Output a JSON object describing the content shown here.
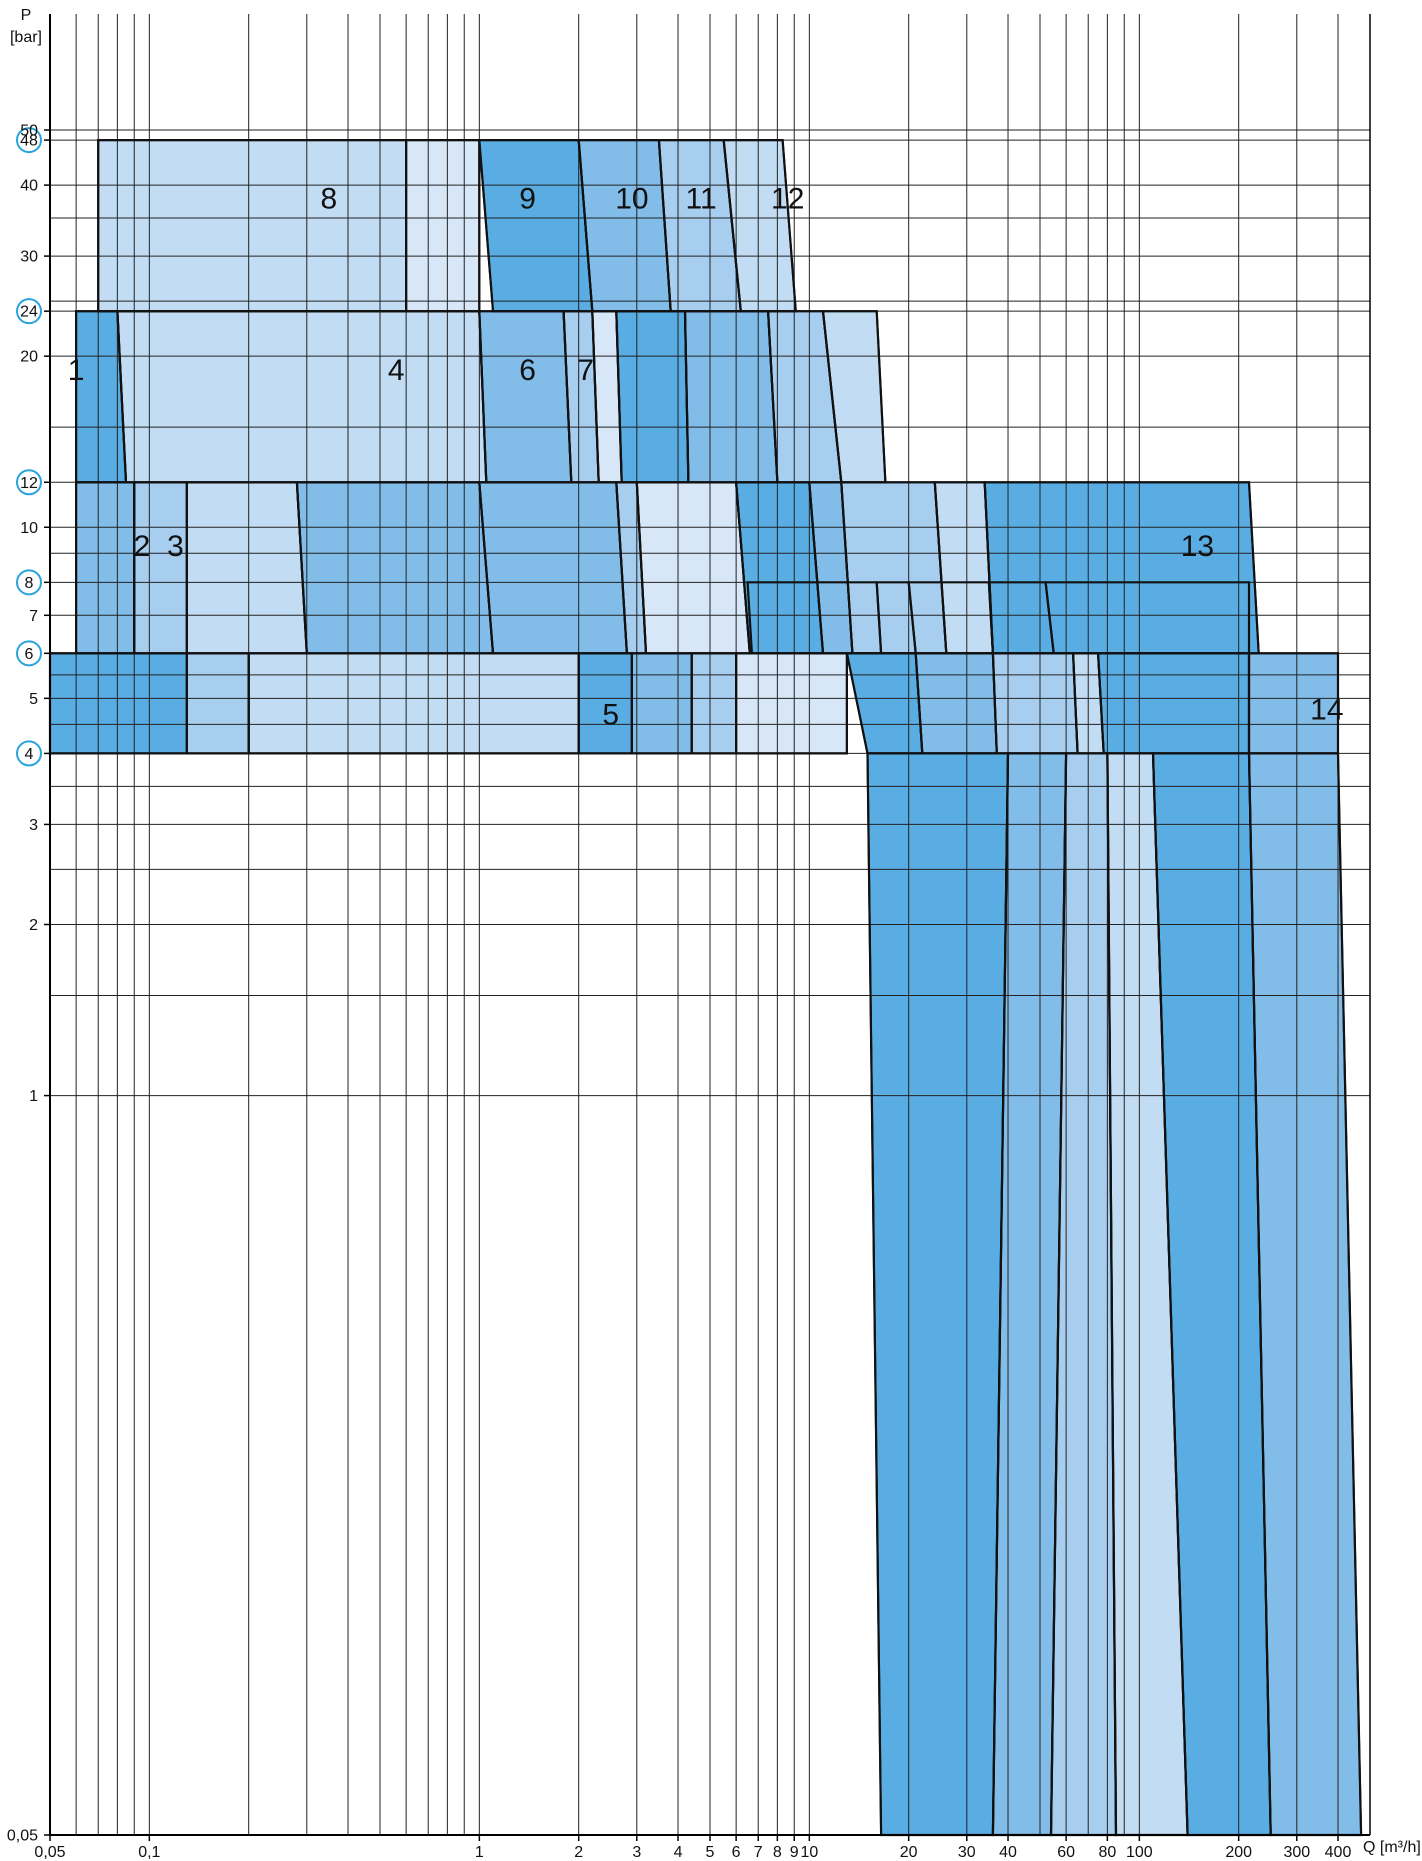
{
  "chart_data": {
    "type": "area",
    "title": "",
    "xlabel": "Q [m³/h]",
    "ylabel_top": "P",
    "ylabel_unit": "[bar]",
    "x_scale": "log",
    "y_scale": "log",
    "xlim": [
      0.05,
      500
    ],
    "ylim": [
      0.05,
      80
    ],
    "grid": true,
    "colors": {
      "dark": "#59ade2",
      "mid": "#82bce8",
      "light": "#a7cdef",
      "lighter": "#c2dcf3",
      "lightest": "#d7e7f7",
      "outline": "#111111",
      "circle": "#28a4dc",
      "grid": "#222222"
    },
    "x_ticks": [
      {
        "v": 0.05,
        "label": "0,05"
      },
      {
        "v": 0.1,
        "label": "0,1"
      },
      {
        "v": 1,
        "label": "1"
      },
      {
        "v": 2,
        "label": "2"
      },
      {
        "v": 3,
        "label": "3"
      },
      {
        "v": 4,
        "label": "4"
      },
      {
        "v": 5,
        "label": "5"
      },
      {
        "v": 6,
        "label": "6"
      },
      {
        "v": 7,
        "label": "7"
      },
      {
        "v": 8,
        "label": "8"
      },
      {
        "v": 9,
        "label": "9"
      },
      {
        "v": 10,
        "label": "10"
      },
      {
        "v": 20,
        "label": "20"
      },
      {
        "v": 30,
        "label": "30"
      },
      {
        "v": 40,
        "label": "40"
      },
      {
        "v": 60,
        "label": "60"
      },
      {
        "v": 80,
        "label": "80"
      },
      {
        "v": 100,
        "label": "100"
      },
      {
        "v": 200,
        "label": "200"
      },
      {
        "v": 300,
        "label": "300"
      },
      {
        "v": 400,
        "label": "400"
      }
    ],
    "y_ticks": [
      {
        "v": 0.05,
        "label": "0,05",
        "circled": false
      },
      {
        "v": 1,
        "label": "1",
        "circled": false
      },
      {
        "v": 2,
        "label": "2",
        "circled": false
      },
      {
        "v": 3,
        "label": "3",
        "circled": false
      },
      {
        "v": 4,
        "label": "4",
        "circled": true
      },
      {
        "v": 5,
        "label": "5",
        "circled": false
      },
      {
        "v": 6,
        "label": "6",
        "circled": true
      },
      {
        "v": 7,
        "label": "7",
        "circled": false
      },
      {
        "v": 8,
        "label": "8",
        "circled": true
      },
      {
        "v": 10,
        "label": "10",
        "circled": false
      },
      {
        "v": 12,
        "label": "12",
        "circled": true
      },
      {
        "v": 20,
        "label": "20",
        "circled": false
      },
      {
        "v": 24,
        "label": "24",
        "circled": true
      },
      {
        "v": 30,
        "label": "30",
        "circled": false
      },
      {
        "v": 40,
        "label": "40",
        "circled": false
      },
      {
        "v": 48,
        "label": "48",
        "circled": true
      },
      {
        "v": 50,
        "label": "50",
        "circled": false
      }
    ],
    "x_grid": [
      0.05,
      0.06,
      0.07,
      0.08,
      0.09,
      0.1,
      0.2,
      0.3,
      0.4,
      0.5,
      0.6,
      0.7,
      0.8,
      0.9,
      1,
      2,
      3,
      4,
      5,
      6,
      7,
      8,
      9,
      10,
      20,
      30,
      40,
      50,
      60,
      70,
      80,
      90,
      100,
      200,
      300,
      400,
      500
    ],
    "y_grid": [
      1,
      1.5,
      2,
      2.5,
      3,
      3.5,
      4,
      4.5,
      5,
      5.5,
      6,
      7,
      8,
      9,
      10,
      12,
      15,
      20,
      24,
      25,
      30,
      35,
      40,
      48,
      50
    ],
    "bands": [
      {
        "p_lo": 0.05,
        "p_hi": 4,
        "cells": [
          {
            "x0": 15,
            "x1": 40,
            "xb0": 16.5,
            "xb1": 36,
            "color": "dark"
          },
          {
            "x0": 40,
            "x1": 60,
            "xb0": 36,
            "xb1": 54,
            "color": "mid"
          },
          {
            "x0": 60,
            "x1": 80,
            "xb0": 54,
            "xb1": 85,
            "color": "light"
          },
          {
            "x0": 80,
            "x1": 110,
            "xb0": 85,
            "xb1": 140,
            "color": "lighter"
          },
          {
            "x0": 110,
            "x1": 215,
            "xb0": 140,
            "xb1": 250,
            "color": "dark"
          },
          {
            "x0": 215,
            "x1": 400,
            "xb0": 250,
            "xb1": 470,
            "color": "mid"
          }
        ]
      },
      {
        "p_lo": 4,
        "p_hi": 6,
        "cells": [
          {
            "x0": 0.05,
            "x1": 0.13,
            "xb0": 0.05,
            "xb1": 0.13,
            "color": "dark"
          },
          {
            "x0": 0.13,
            "x1": 0.2,
            "xb0": 0.13,
            "xb1": 0.2,
            "color": "light"
          },
          {
            "x0": 0.2,
            "x1": 2,
            "xb0": 0.2,
            "xb1": 2,
            "color": "lighter"
          },
          {
            "x0": 2,
            "x1": 2.9,
            "xb0": 2,
            "xb1": 2.9,
            "color": "dark"
          },
          {
            "x0": 2.9,
            "x1": 4.4,
            "xb0": 2.9,
            "xb1": 4.4,
            "color": "mid"
          },
          {
            "x0": 4.4,
            "x1": 6,
            "xb0": 4.4,
            "xb1": 6,
            "color": "light"
          },
          {
            "x0": 6,
            "x1": 13,
            "xb0": 6,
            "xb1": 13,
            "color": "lightest"
          },
          {
            "x0": 13,
            "x1": 21,
            "xb0": 15,
            "xb1": 22,
            "color": "dark"
          },
          {
            "x0": 21,
            "x1": 36,
            "xb0": 22,
            "xb1": 37,
            "color": "mid"
          },
          {
            "x0": 36,
            "x1": 63,
            "xb0": 37,
            "xb1": 65,
            "color": "light"
          },
          {
            "x0": 63,
            "x1": 75,
            "xb0": 65,
            "xb1": 78,
            "color": "lighter"
          },
          {
            "x0": 75,
            "x1": 215,
            "xb0": 78,
            "xb1": 215,
            "color": "dark"
          },
          {
            "x0": 215,
            "x1": 400,
            "xb0": 215,
            "xb1": 400,
            "color": "mid"
          }
        ]
      },
      {
        "p_lo": 6,
        "p_hi": 8,
        "cells": [
          {
            "x0": 6.5,
            "x1": 16,
            "xb0": 6.7,
            "xb1": 16.5,
            "color": "dark"
          },
          {
            "x0": 16,
            "x1": 20,
            "xb0": 16.5,
            "xb1": 21,
            "color": "mid"
          },
          {
            "x0": 20,
            "x1": 35,
            "xb0": 21,
            "xb1": 36,
            "color": "light"
          },
          {
            "x0": 35,
            "x1": 52,
            "xb0": 36,
            "xb1": 55,
            "color": "lighter"
          },
          {
            "x0": 52,
            "x1": 215,
            "xb0": 55,
            "xb1": 215,
            "color": "dark"
          }
        ]
      },
      {
        "p_lo": 6,
        "p_hi": 12,
        "cells": [
          {
            "x0": 0.06,
            "x1": 0.09,
            "xb0": 0.06,
            "xb1": 0.09,
            "color": "mid"
          },
          {
            "x0": 0.09,
            "x1": 0.13,
            "xb0": 0.09,
            "xb1": 0.13,
            "color": "light"
          },
          {
            "x0": 0.13,
            "x1": 0.28,
            "xb0": 0.13,
            "xb1": 0.3,
            "color": "lighter"
          },
          {
            "x0": 0.28,
            "x1": 1,
            "xb0": 0.3,
            "xb1": 1.1,
            "color": "mid"
          },
          {
            "x0": 1,
            "x1": 2.6,
            "xb0": 1.1,
            "xb1": 2.8,
            "color": "mid"
          },
          {
            "x0": 2.6,
            "x1": 3,
            "xb0": 2.8,
            "xb1": 3.2,
            "color": "light"
          },
          {
            "x0": 3,
            "x1": 6,
            "xb0": 3.2,
            "xb1": 6.6,
            "color": "lightest"
          },
          {
            "x0": 6,
            "x1": 10,
            "xb0": 6.6,
            "xb1": 11,
            "color": "dark"
          },
          {
            "x0": 10,
            "x1": 12.5,
            "xb0": 11,
            "xb1": 13.5,
            "color": "mid"
          },
          {
            "x0": 12.5,
            "x1": 24,
            "xb0": 13.5,
            "xb1": 26,
            "color": "light"
          },
          {
            "x0": 24,
            "x1": 34,
            "xb0": 26,
            "xb1": 36,
            "color": "lighter"
          },
          {
            "x0": 34,
            "x1": 215,
            "xb0": 36,
            "xb1": 230,
            "color": "dark"
          }
        ]
      },
      {
        "p_lo": 12,
        "p_hi": 24,
        "cells": [
          {
            "x0": 0.06,
            "x1": 0.08,
            "xb0": 0.06,
            "xb1": 0.085,
            "color": "dark"
          },
          {
            "x0": 0.08,
            "x1": 1,
            "xb0": 0.085,
            "xb1": 1.05,
            "color": "lighter"
          },
          {
            "x0": 1,
            "x1": 1.8,
            "xb0": 1.05,
            "xb1": 1.9,
            "color": "mid"
          },
          {
            "x0": 1.8,
            "x1": 2.2,
            "xb0": 1.9,
            "xb1": 2.3,
            "color": "light"
          },
          {
            "x0": 2.2,
            "x1": 2.6,
            "xb0": 2.3,
            "xb1": 2.7,
            "color": "lightest"
          },
          {
            "x0": 2.6,
            "x1": 4.2,
            "xb0": 2.7,
            "xb1": 4.3,
            "color": "dark"
          },
          {
            "x0": 4.2,
            "x1": 7.5,
            "xb0": 4.3,
            "xb1": 8,
            "color": "mid"
          },
          {
            "x0": 7.5,
            "x1": 11,
            "xb0": 8,
            "xb1": 12.5,
            "color": "light"
          },
          {
            "x0": 11,
            "x1": 16,
            "xb0": 12.5,
            "xb1": 17,
            "color": "lighter"
          }
        ]
      },
      {
        "p_lo": 24,
        "p_hi": 48,
        "cells": [
          {
            "x0": 0.07,
            "x1": 0.6,
            "xb0": 0.07,
            "xb1": 0.6,
            "color": "lighter"
          },
          {
            "x0": 0.6,
            "x1": 1.0,
            "xb0": 0.6,
            "xb1": 1.0,
            "color": "lightest"
          },
          {
            "x0": 1.0,
            "x1": 2.0,
            "xb0": 1.1,
            "xb1": 2.2,
            "color": "dark"
          },
          {
            "x0": 2.0,
            "x1": 3.5,
            "xb0": 2.2,
            "xb1": 3.8,
            "color": "mid"
          },
          {
            "x0": 3.5,
            "x1": 5.5,
            "xb0": 3.8,
            "xb1": 6.2,
            "color": "light"
          },
          {
            "x0": 5.5,
            "x1": 8.3,
            "xb0": 6.2,
            "xb1": 9.1,
            "color": "lighter"
          }
        ]
      }
    ],
    "series_labels": [
      {
        "text": "1",
        "x": 0.06,
        "y": 19
      },
      {
        "text": "2",
        "x": 0.095,
        "y": 9.3
      },
      {
        "text": "3",
        "x": 0.12,
        "y": 9.3
      },
      {
        "text": "4",
        "x": 0.56,
        "y": 19
      },
      {
        "text": "5",
        "x": 2.5,
        "y": 4.7
      },
      {
        "text": "6",
        "x": 1.4,
        "y": 19
      },
      {
        "text": "7",
        "x": 2.1,
        "y": 19
      },
      {
        "text": "8",
        "x": 0.35,
        "y": 38
      },
      {
        "text": "9",
        "x": 1.4,
        "y": 38
      },
      {
        "text": "10",
        "x": 2.9,
        "y": 38
      },
      {
        "text": "11",
        "x": 4.7,
        "y": 38
      },
      {
        "text": "12",
        "x": 8.6,
        "y": 38
      },
      {
        "text": "13",
        "x": 150,
        "y": 9.3
      },
      {
        "text": "14",
        "x": 370,
        "y": 4.8
      }
    ]
  }
}
